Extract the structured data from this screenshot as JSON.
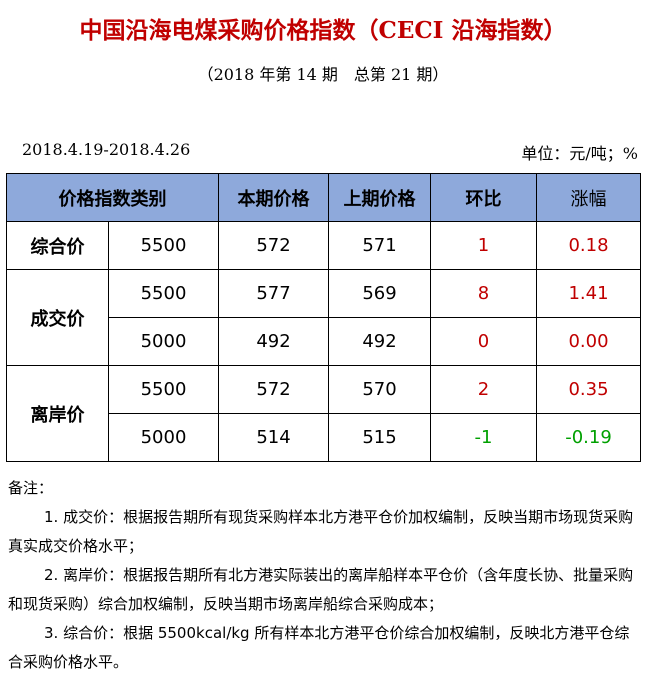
{
  "title": "中国沿海电煤采购价格指数（CECI 沿海指数）",
  "subtitle": "（2018 年第 14 期　总第 21 期）",
  "date_range": "2018.4.19-2018.4.26",
  "unit": "单位：元/吨；%",
  "table": {
    "headers": {
      "category": "价格指数类别",
      "current": "本期价格",
      "previous": "上期价格",
      "change": "环比",
      "pct": "涨幅"
    },
    "groups": [
      {
        "name": "综合价",
        "rows": [
          {
            "spec": "5500",
            "current": "572",
            "previous": "571",
            "change": "1",
            "pct": "0.18",
            "trend": "up"
          }
        ]
      },
      {
        "name": "成交价",
        "rows": [
          {
            "spec": "5500",
            "current": "577",
            "previous": "569",
            "change": "8",
            "pct": "1.41",
            "trend": "up"
          },
          {
            "spec": "5000",
            "current": "492",
            "previous": "492",
            "change": "0",
            "pct": "0.00",
            "trend": "up"
          }
        ]
      },
      {
        "name": "离岸价",
        "rows": [
          {
            "spec": "5500",
            "current": "572",
            "previous": "570",
            "change": "2",
            "pct": "0.35",
            "trend": "up"
          },
          {
            "spec": "5000",
            "current": "514",
            "previous": "515",
            "change": "-1",
            "pct": "-0.19",
            "trend": "down"
          }
        ]
      }
    ]
  },
  "notes": {
    "heading": "备注：",
    "items": [
      "1. 成交价：根据报告期所有现货采购样本北方港平仓价加权编制，反映当期市场现货采购真实成交价格水平；",
      "2. 离岸价：根据报告期所有北方港实际装出的离岸船样本平仓价（含年度长协、批量采购和现货采购）综合加权编制，反映当期市场离岸船综合采购成本；",
      "3. 综合价：根据 5500kcal/kg 所有样本北方港平仓价综合加权编制，反映北方港平仓综合采购价格水平。"
    ]
  },
  "colors": {
    "title": "#c00000",
    "header_bg": "#8ea9db",
    "up": "#c00000",
    "down": "#00a000"
  }
}
